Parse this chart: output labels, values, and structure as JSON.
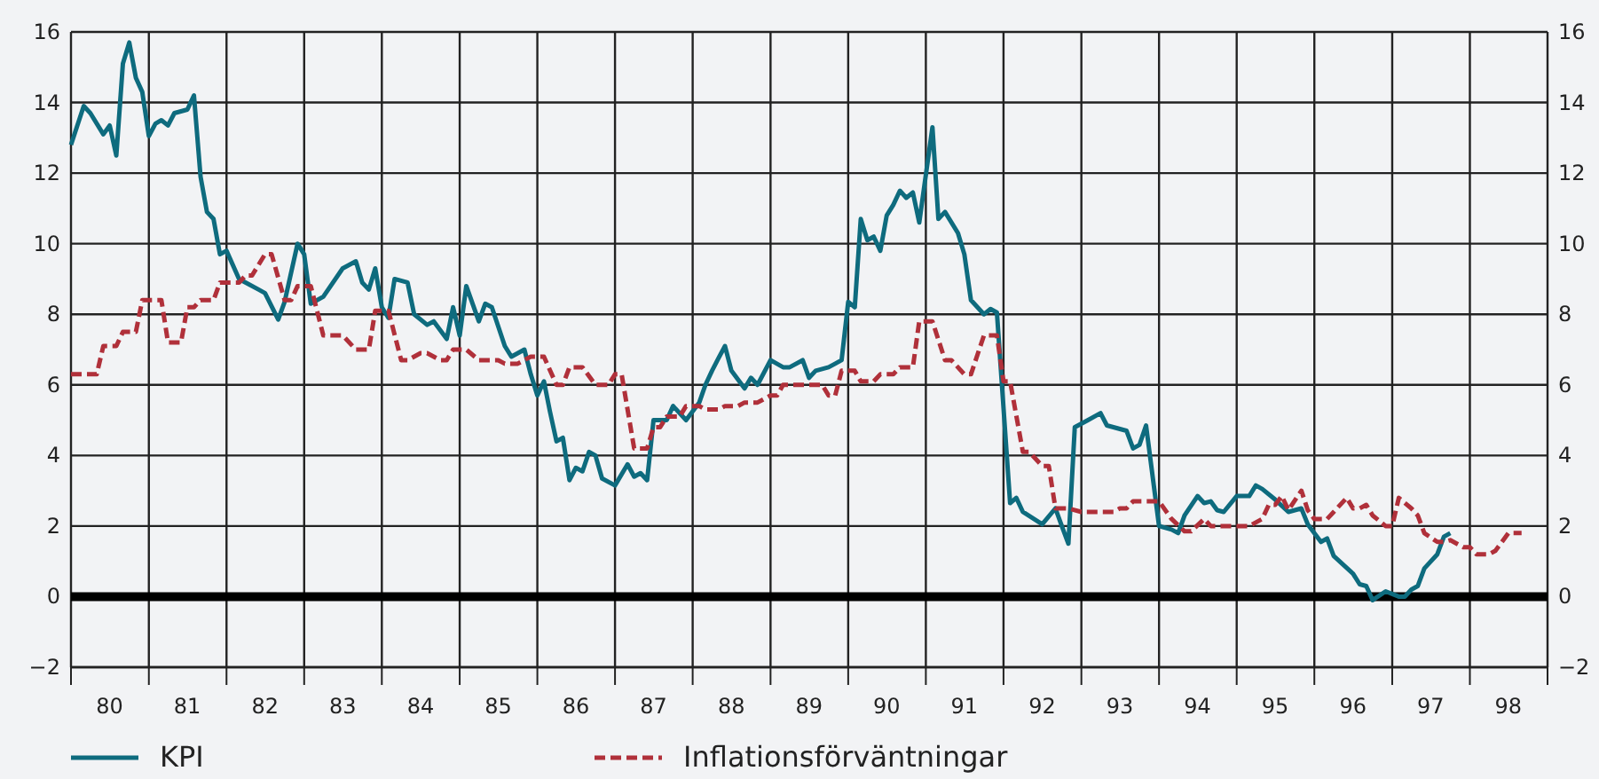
{
  "chart_data": {
    "type": "line",
    "xlim": [
      "1980-01",
      "1999-01"
    ],
    "xticks": [
      {
        "value": "1980-01",
        "label": null
      },
      {
        "value": "1980-07",
        "label": "80"
      },
      {
        "value": "1981-01",
        "label": null
      },
      {
        "value": "1981-07",
        "label": "81"
      },
      {
        "value": "1982-01",
        "label": null
      },
      {
        "value": "1982-07",
        "label": "82"
      },
      {
        "value": "1983-01",
        "label": null
      },
      {
        "value": "1983-07",
        "label": "83"
      },
      {
        "value": "1984-01",
        "label": null
      },
      {
        "value": "1984-07",
        "label": "84"
      },
      {
        "value": "1985-01",
        "label": null
      },
      {
        "value": "1985-07",
        "label": "85"
      },
      {
        "value": "1986-01",
        "label": null
      },
      {
        "value": "1986-07",
        "label": "86"
      },
      {
        "value": "1987-01",
        "label": null
      },
      {
        "value": "1987-07",
        "label": "87"
      },
      {
        "value": "1988-01",
        "label": null
      },
      {
        "value": "1988-07",
        "label": "88"
      },
      {
        "value": "1989-01",
        "label": null
      },
      {
        "value": "1989-07",
        "label": "89"
      },
      {
        "value": "1990-01",
        "label": null
      },
      {
        "value": "1990-07",
        "label": "90"
      },
      {
        "value": "1991-01",
        "label": null
      },
      {
        "value": "1991-07",
        "label": "91"
      },
      {
        "value": "1992-01",
        "label": null
      },
      {
        "value": "1992-07",
        "label": "92"
      },
      {
        "value": "1993-01",
        "label": null
      },
      {
        "value": "1993-07",
        "label": "93"
      },
      {
        "value": "1994-01",
        "label": null
      },
      {
        "value": "1994-07",
        "label": "94"
      },
      {
        "value": "1995-01",
        "label": null
      },
      {
        "value": "1995-07",
        "label": "95"
      },
      {
        "value": "1996-01",
        "label": null
      },
      {
        "value": "1996-07",
        "label": "96"
      },
      {
        "value": "1997-01",
        "label": null
      },
      {
        "value": "1997-07",
        "label": "97"
      },
      {
        "value": "1998-01",
        "label": null
      },
      {
        "value": "1998-07",
        "label": "98"
      },
      {
        "value": "1999-01",
        "label": null
      }
    ],
    "ylim": [
      -2,
      16
    ],
    "yticks": [
      {
        "value": -2,
        "label": "−2"
      },
      0,
      2,
      4,
      6,
      8,
      10,
      12,
      14,
      16
    ],
    "y2lim": [
      -2,
      16
    ],
    "y2ticks": [
      {
        "value": -2,
        "label": "−2"
      },
      0,
      2,
      4,
      6,
      8,
      10,
      12,
      14,
      16
    ],
    "grid": true,
    "legend": "bottom",
    "ref_lines": [
      {
        "axis": "y",
        "value": 0,
        "label": null,
        "color": "#000000"
      }
    ],
    "series": [
      {
        "name": "KPI",
        "color": "#0e6b7e",
        "line_style": "solid",
        "x": [
          "1980-01",
          "1980-03",
          "1980-04",
          "1980-06",
          "1980-07",
          "1980-08",
          "1980-09",
          "1980-10",
          "1980-11",
          "1980-12",
          "1981-01",
          "1981-02",
          "1981-03",
          "1981-04",
          "1981-05",
          "1981-07",
          "1981-08",
          "1981-09",
          "1981-10",
          "1981-11",
          "1981-12",
          "1982-01",
          "1982-03",
          "1982-04",
          "1982-06",
          "1982-07",
          "1982-09",
          "1982-10",
          "1982-12",
          "1983-01",
          "1983-02",
          "1983-04",
          "1983-07",
          "1983-09",
          "1983-10",
          "1983-11",
          "1983-12",
          "1984-01",
          "1984-02",
          "1984-03",
          "1984-05",
          "1984-06",
          "1984-08",
          "1984-09",
          "1984-11",
          "1984-12",
          "1985-01",
          "1985-02",
          "1985-04",
          "1985-05",
          "1985-06",
          "1985-08",
          "1985-09",
          "1985-11",
          "1985-12",
          "1986-01",
          "1986-02",
          "1986-03",
          "1986-04",
          "1986-05",
          "1986-06",
          "1986-07",
          "1986-08",
          "1986-09",
          "1986-10",
          "1986-11",
          "1987-01",
          "1987-03",
          "1987-04",
          "1987-05",
          "1987-06",
          "1987-07",
          "1987-09",
          "1987-10",
          "1987-12",
          "1988-02",
          "1988-03",
          "1988-04",
          "1988-05",
          "1988-06",
          "1988-07",
          "1988-09",
          "1988-10",
          "1988-11",
          "1989-01",
          "1989-03",
          "1989-04",
          "1989-06",
          "1989-07",
          "1989-08",
          "1989-10",
          "1989-11",
          "1989-12",
          "1990-01",
          "1990-02",
          "1990-03",
          "1990-04",
          "1990-05",
          "1990-06",
          "1990-07",
          "1990-08",
          "1990-09",
          "1990-10",
          "1990-11",
          "1990-12",
          "1991-02",
          "1991-03",
          "1991-04",
          "1991-06",
          "1991-07",
          "1991-08",
          "1991-10",
          "1991-11",
          "1991-12",
          "1992-02",
          "1992-03",
          "1992-04",
          "1992-07",
          "1992-09",
          "1992-10",
          "1992-11",
          "1992-12",
          "1993-02",
          "1993-04",
          "1993-05",
          "1993-08",
          "1993-09",
          "1993-10",
          "1993-11",
          "1994-01",
          "1994-03",
          "1994-04",
          "1994-05",
          "1994-07",
          "1994-08",
          "1994-09",
          "1994-10",
          "1994-11",
          "1995-01",
          "1995-03",
          "1995-04",
          "1995-05",
          "1995-07",
          "1995-09",
          "1995-11",
          "1995-12",
          "1996-02",
          "1996-03",
          "1996-04",
          "1996-07",
          "1996-08",
          "1996-09",
          "1996-10",
          "1996-12",
          "1997-02",
          "1997-03",
          "1997-04",
          "1997-05",
          "1997-06",
          "1997-08",
          "1997-09",
          "1997-10"
        ],
        "values": [
          12.8,
          13.9,
          13.7,
          13.1,
          13.35,
          12.5,
          15.1,
          15.7,
          14.7,
          14.3,
          13.05,
          13.4,
          13.5,
          13.35,
          13.7,
          13.8,
          14.2,
          11.9,
          10.9,
          10.7,
          9.7,
          9.8,
          9.0,
          8.9,
          8.7,
          8.6,
          7.85,
          8.35,
          10.0,
          9.7,
          8.3,
          8.5,
          9.3,
          9.5,
          8.9,
          8.7,
          9.3,
          8.2,
          7.9,
          9.0,
          8.9,
          8.0,
          7.7,
          7.8,
          7.3,
          8.2,
          7.4,
          8.8,
          7.8,
          8.3,
          8.2,
          7.1,
          6.8,
          7.0,
          6.3,
          5.7,
          6.1,
          5.25,
          4.4,
          4.5,
          3.3,
          3.65,
          3.55,
          4.1,
          4.0,
          3.35,
          3.15,
          3.75,
          3.4,
          3.5,
          3.3,
          5.0,
          5.0,
          5.4,
          5.0,
          5.5,
          6.0,
          6.4,
          6.75,
          7.1,
          6.4,
          5.9,
          6.2,
          6.0,
          6.7,
          6.5,
          6.5,
          6.7,
          6.2,
          6.4,
          6.5,
          6.6,
          6.7,
          8.35,
          8.2,
          10.7,
          10.1,
          10.2,
          9.8,
          10.8,
          11.1,
          11.5,
          11.3,
          11.45,
          10.6,
          13.3,
          10.7,
          10.9,
          10.3,
          9.7,
          8.4,
          8.0,
          8.15,
          8.05,
          2.65,
          2.8,
          2.4,
          2.05,
          2.5,
          2.0,
          1.5,
          4.8,
          5.0,
          5.2,
          4.85,
          4.7,
          4.2,
          4.3,
          4.85,
          2.0,
          1.9,
          1.8,
          2.3,
          2.85,
          2.65,
          2.7,
          2.45,
          2.4,
          2.85,
          2.85,
          3.15,
          3.05,
          2.75,
          2.4,
          2.5,
          2.05,
          1.55,
          1.65,
          1.15,
          0.65,
          0.35,
          0.3,
          -0.1,
          0.15,
          0,
          0,
          0.2,
          0.3,
          0.8,
          1.2,
          1.7,
          1.8
        ]
      },
      {
        "name": "Inflationsförväntningar",
        "color": "#b0303a",
        "line_style": "dashed",
        "x": [
          "1980-01",
          "1980-05",
          "1980-06",
          "1980-08",
          "1980-09",
          "1980-11",
          "1980-12",
          "1981-03",
          "1981-04",
          "1981-06",
          "1981-07",
          "1981-08",
          "1981-09",
          "1981-11",
          "1981-12",
          "1982-03",
          "1982-04",
          "1982-05",
          "1982-07",
          "1982-08",
          "1982-10",
          "1982-11",
          "1982-12",
          "1983-02",
          "1983-04",
          "1983-07",
          "1983-09",
          "1983-11",
          "1983-12",
          "1984-02",
          "1984-04",
          "1984-05",
          "1984-07",
          "1984-08",
          "1984-10",
          "1984-11",
          "1984-12",
          "1985-02",
          "1985-04",
          "1985-07",
          "1985-08",
          "1985-10",
          "1985-12",
          "1986-02",
          "1986-04",
          "1986-05",
          "1986-06",
          "1986-08",
          "1986-10",
          "1986-12",
          "1987-01",
          "1987-02",
          "1987-04",
          "1987-06",
          "1987-07",
          "1987-08",
          "1987-09",
          "1987-11",
          "1987-12",
          "1988-02",
          "1988-03",
          "1988-05",
          "1988-06",
          "1988-08",
          "1988-09",
          "1988-11",
          "1989-01",
          "1989-02",
          "1989-03",
          "1989-09",
          "1989-10",
          "1989-11",
          "1989-12",
          "1990-02",
          "1990-03",
          "1990-05",
          "1990-06",
          "1990-08",
          "1990-09",
          "1990-11",
          "1990-12",
          "1991-02",
          "1991-04",
          "1991-05",
          "1991-07",
          "1991-08",
          "1991-10",
          "1991-12",
          "1992-01",
          "1992-02",
          "1992-04",
          "1992-05",
          "1992-07",
          "1992-08",
          "1992-09",
          "1992-11",
          "1993-01",
          "1993-06",
          "1993-07",
          "1993-08",
          "1993-09",
          "1994-01",
          "1994-03",
          "1994-05",
          "1994-06",
          "1994-08",
          "1994-09",
          "1995-03",
          "1995-05",
          "1995-06",
          "1995-07",
          "1995-08",
          "1995-09",
          "1995-11",
          "1995-12",
          "1996-01",
          "1996-03",
          "1996-04",
          "1996-06",
          "1996-07",
          "1996-08",
          "1996-09",
          "1996-10",
          "1996-12",
          "1997-01",
          "1997-02",
          "1997-04",
          "1997-05",
          "1997-06",
          "1997-08",
          "1997-09",
          "1997-10",
          "1997-12",
          "1998-01",
          "1998-02",
          "1998-04",
          "1998-05",
          "1998-07",
          "1998-09"
        ],
        "values": [
          6.3,
          6.3,
          7.1,
          7.1,
          7.5,
          7.5,
          8.4,
          8.4,
          7.2,
          7.2,
          8.2,
          8.2,
          8.4,
          8.4,
          8.9,
          8.9,
          9.1,
          9.1,
          9.7,
          9.7,
          8.4,
          8.4,
          8.8,
          8.8,
          7.4,
          7.4,
          7.0,
          7.0,
          8.1,
          8.1,
          6.7,
          6.7,
          6.9,
          6.9,
          6.7,
          6.7,
          7.0,
          7.0,
          6.7,
          6.7,
          6.6,
          6.6,
          6.8,
          6.8,
          6.0,
          6.0,
          6.5,
          6.5,
          6.0,
          6.0,
          6.3,
          6.3,
          4.2,
          4.2,
          4.8,
          4.8,
          5.1,
          5.1,
          5.4,
          5.4,
          5.3,
          5.3,
          5.4,
          5.4,
          5.5,
          5.5,
          5.7,
          5.7,
          6.0,
          6.0,
          5.7,
          5.7,
          6.4,
          6.4,
          6.1,
          6.1,
          6.3,
          6.3,
          6.5,
          6.5,
          7.8,
          7.8,
          6.7,
          6.7,
          6.3,
          6.3,
          7.4,
          7.4,
          6.1,
          6.1,
          4.1,
          4.1,
          3.7,
          3.7,
          2.5,
          2.5,
          2.4,
          2.4,
          2.5,
          2.5,
          2.7,
          2.7,
          2.2,
          1.85,
          1.85,
          2.2,
          2.0,
          2.0,
          2.2,
          2.6,
          2.6,
          2.85,
          2.45,
          3.0,
          2.45,
          2.2,
          2.2,
          2.4,
          2.8,
          2.5,
          2.5,
          2.6,
          2.3,
          2.0,
          2.0,
          2.8,
          2.5,
          2.3,
          1.8,
          1.55,
          1.55,
          1.6,
          1.4,
          1.4,
          1.2,
          1.2,
          1.3,
          1.8,
          1.8
        ]
      }
    ]
  }
}
